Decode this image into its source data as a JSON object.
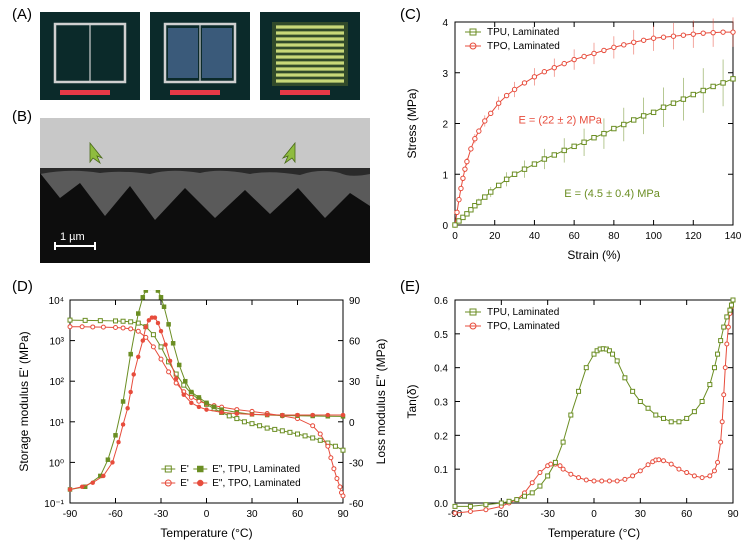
{
  "labels": {
    "A": "(A)",
    "B": "(B)",
    "C": "(C)",
    "D": "(D)",
    "E": "(E)"
  },
  "colors": {
    "tpu": "#6b8e23",
    "tpo": "#e74c3c",
    "tpu_dark": "#556b2f",
    "tpo_dark": "#c0392b",
    "axis": "#000000",
    "micrograph_bg": "#1a1a1a",
    "micrograph_light": "#c0c0c0",
    "scalebar": "#e63946",
    "photo_bg": "#0b2a2a",
    "photo_cell": "#b8c870",
    "photo_frame": "#d0d0d0"
  },
  "panelA": {
    "scalebar_label": ""
  },
  "panelB": {
    "scalebar": "1 µm"
  },
  "panelC": {
    "type": "line-errorbar",
    "xlabel": "Strain (%)",
    "ylabel": "Stress (MPa)",
    "xlim": [
      0,
      140
    ],
    "ylim": [
      0,
      4
    ],
    "xticks": [
      0,
      20,
      40,
      60,
      80,
      100,
      120,
      140
    ],
    "yticks": [
      0,
      1,
      2,
      3,
      4
    ],
    "legend": {
      "tpu": "TPU, Laminated",
      "tpo": "TPO, Laminated",
      "tpu_marker": "square-open",
      "tpo_marker": "circle-open"
    },
    "annotations": {
      "tpu": "E = (4.5 ± 0.4) MPa",
      "tpo": "E = (22 ± 2) MPa"
    },
    "series": {
      "tpu": {
        "x": [
          0,
          2,
          4,
          6,
          8,
          10,
          12,
          15,
          18,
          22,
          26,
          30,
          35,
          40,
          45,
          50,
          55,
          60,
          65,
          70,
          75,
          80,
          85,
          90,
          95,
          100,
          105,
          110,
          115,
          120,
          125,
          130,
          135,
          140
        ],
        "y": [
          0.0,
          0.08,
          0.15,
          0.22,
          0.3,
          0.38,
          0.45,
          0.55,
          0.65,
          0.78,
          0.9,
          1.0,
          1.1,
          1.2,
          1.3,
          1.38,
          1.47,
          1.55,
          1.63,
          1.72,
          1.8,
          1.9,
          1.98,
          2.07,
          2.15,
          2.22,
          2.32,
          2.4,
          2.48,
          2.57,
          2.65,
          2.73,
          2.8,
          2.88
        ],
        "err": [
          0.0,
          0.02,
          0.03,
          0.04,
          0.05,
          0.06,
          0.07,
          0.08,
          0.1,
          0.12,
          0.14,
          0.15,
          0.17,
          0.19,
          0.2,
          0.22,
          0.24,
          0.26,
          0.27,
          0.29,
          0.3,
          0.32,
          0.33,
          0.35,
          0.36,
          0.38,
          0.39,
          0.4,
          0.42,
          0.43,
          0.44,
          0.45,
          0.46,
          0.47
        ],
        "color": "#6b8e23"
      },
      "tpo": {
        "x": [
          0,
          1,
          2,
          3,
          4,
          5,
          6,
          8,
          10,
          12,
          15,
          18,
          22,
          26,
          30,
          35,
          40,
          45,
          50,
          55,
          60,
          65,
          70,
          75,
          80,
          85,
          90,
          95,
          100,
          105,
          110,
          115,
          120,
          125,
          130,
          135,
          140
        ],
        "y": [
          0.0,
          0.25,
          0.5,
          0.72,
          0.92,
          1.1,
          1.25,
          1.5,
          1.7,
          1.85,
          2.05,
          2.2,
          2.4,
          2.55,
          2.67,
          2.8,
          2.92,
          3.02,
          3.1,
          3.18,
          3.26,
          3.32,
          3.38,
          3.44,
          3.5,
          3.55,
          3.6,
          3.64,
          3.68,
          3.7,
          3.72,
          3.74,
          3.76,
          3.78,
          3.79,
          3.8,
          3.8
        ],
        "err": [
          0.0,
          0.02,
          0.03,
          0.04,
          0.05,
          0.06,
          0.07,
          0.08,
          0.09,
          0.1,
          0.11,
          0.12,
          0.13,
          0.14,
          0.15,
          0.16,
          0.17,
          0.18,
          0.18,
          0.19,
          0.2,
          0.21,
          0.21,
          0.22,
          0.22,
          0.23,
          0.24,
          0.24,
          0.25,
          0.25,
          0.26,
          0.26,
          0.27,
          0.27,
          0.28,
          0.28,
          0.29
        ],
        "color": "#e74c3c"
      }
    }
  },
  "panelD": {
    "type": "dual-axis",
    "xlabel": "Temperature (°C)",
    "ylabel_left": "Storage modulus E' (MPa)",
    "ylabel_right": "Loss modulus E\" (MPa)",
    "xlim": [
      -90,
      90
    ],
    "ylim_left": [
      0.1,
      10000
    ],
    "ylim_right": [
      -60,
      90
    ],
    "xticks": [
      -90,
      -60,
      -30,
      0,
      30,
      60,
      90
    ],
    "yticks_left": [
      0.1,
      1,
      10,
      100,
      1000,
      10000
    ],
    "ytick_labels_left": [
      "10⁻¹",
      "10⁰",
      "10¹",
      "10²",
      "10³",
      "10⁴"
    ],
    "yticks_right": [
      -60,
      -30,
      0,
      30,
      60,
      90
    ],
    "legend": {
      "tpu_E1_open": "E'",
      "tpu_E2_solid": "E\", TPU, Laminated",
      "tpo_E1_open": "E'",
      "tpo_E2_solid": "E\", TPO, Laminated"
    },
    "series": {
      "E1_tpu": {
        "x": [
          -90,
          -80,
          -70,
          -60,
          -55,
          -50,
          -45,
          -40,
          -35,
          -30,
          -25,
          -20,
          -15,
          -10,
          -5,
          0,
          5,
          10,
          15,
          20,
          25,
          30,
          35,
          40,
          45,
          50,
          55,
          60,
          65,
          70,
          75,
          80,
          85,
          90
        ],
        "y": [
          3200,
          3150,
          3100,
          3050,
          3000,
          2900,
          2700,
          2200,
          1400,
          700,
          300,
          150,
          80,
          50,
          35,
          27,
          21,
          17,
          14,
          12,
          10,
          9,
          8,
          7,
          6.5,
          6,
          5.5,
          5,
          4.5,
          4,
          3.5,
          3,
          2.5,
          2
        ],
        "color": "#6b8e23",
        "marker": "square-open"
      },
      "E1_tpo": {
        "x": [
          -90,
          -82,
          -75,
          -68,
          -60,
          -55,
          -50,
          -45,
          -40,
          -35,
          -30,
          -25,
          -20,
          -15,
          -10,
          -5,
          0,
          5,
          10,
          20,
          30,
          40,
          50,
          60,
          70,
          75,
          80,
          82,
          84,
          86,
          88,
          89,
          90
        ],
        "y": [
          2200,
          2190,
          2170,
          2150,
          2100,
          2050,
          1950,
          1700,
          1200,
          700,
          350,
          170,
          90,
          55,
          40,
          32,
          28,
          25,
          23,
          20,
          18,
          16,
          14,
          12,
          8,
          5,
          2.5,
          1.3,
          0.7,
          0.4,
          0.25,
          0.18,
          0.15
        ],
        "color": "#e74c3c",
        "marker": "circle-open"
      },
      "E2_tpu": {
        "x": [
          -90,
          -80,
          -70,
          -65,
          -60,
          -55,
          -50,
          -45,
          -42,
          -40,
          -38,
          -36,
          -34,
          -32,
          -30,
          -28,
          -25,
          -22,
          -18,
          -14,
          -10,
          -5,
          0,
          5,
          10,
          20,
          30,
          40,
          50,
          60,
          70,
          80,
          90
        ],
        "y": [
          -50,
          -48,
          -40,
          -28,
          -10,
          15,
          50,
          80,
          92,
          97,
          99,
          100,
          99,
          97,
          92,
          85,
          72,
          58,
          42,
          30,
          22,
          18,
          14,
          11,
          9,
          7,
          5.5,
          5,
          4.7,
          4.5,
          4.3,
          4.1,
          4
        ],
        "color": "#6b8e23",
        "marker": "square-solid"
      },
      "E2_tpo": {
        "x": [
          -90,
          -82,
          -75,
          -68,
          -62,
          -58,
          -55,
          -52,
          -50,
          -48,
          -45,
          -42,
          -40,
          -38,
          -36,
          -34,
          -32,
          -30,
          -27,
          -24,
          -20,
          -15,
          -10,
          -5,
          0,
          10,
          20,
          30,
          40,
          50,
          60,
          70,
          80,
          90
        ],
        "y": [
          -50,
          -48,
          -45,
          -40,
          -30,
          -15,
          -2,
          10,
          22,
          35,
          48,
          60,
          70,
          75,
          77,
          77,
          73,
          67,
          57,
          45,
          32,
          20,
          14,
          11,
          9,
          7,
          6,
          5.5,
          5.2,
          5,
          5,
          5,
          5,
          5
        ],
        "color": "#e74c3c",
        "marker": "circle-solid"
      }
    }
  },
  "panelE": {
    "type": "line",
    "xlabel": "Temperature (°C)",
    "ylabel": "Tan(δ)",
    "xlim": [
      -90,
      90
    ],
    "ylim": [
      0,
      0.6
    ],
    "xticks": [
      -90,
      -60,
      -30,
      0,
      30,
      60,
      90
    ],
    "yticks": [
      0.0,
      0.1,
      0.2,
      0.3,
      0.4,
      0.5,
      0.6
    ],
    "legend": {
      "tpu": "TPU, Laminated",
      "tpo": "TPO, Laminated"
    },
    "series": {
      "tpu": {
        "x": [
          -90,
          -80,
          -70,
          -60,
          -55,
          -50,
          -45,
          -40,
          -35,
          -30,
          -25,
          -20,
          -15,
          -10,
          -5,
          0,
          2,
          4,
          6,
          8,
          10,
          12,
          15,
          20,
          25,
          30,
          35,
          40,
          45,
          50,
          55,
          60,
          65,
          70,
          75,
          78,
          80,
          82,
          84,
          86,
          88,
          89,
          90
        ],
        "y": [
          -0.01,
          -0.01,
          -0.005,
          0.0,
          0.005,
          0.01,
          0.02,
          0.03,
          0.05,
          0.08,
          0.12,
          0.18,
          0.26,
          0.33,
          0.4,
          0.44,
          0.45,
          0.455,
          0.456,
          0.455,
          0.45,
          0.44,
          0.42,
          0.37,
          0.33,
          0.3,
          0.28,
          0.26,
          0.25,
          0.24,
          0.24,
          0.25,
          0.27,
          0.3,
          0.35,
          0.4,
          0.44,
          0.48,
          0.52,
          0.55,
          0.57,
          0.585,
          0.6
        ],
        "color": "#6b8e23",
        "marker": "square-open"
      },
      "tpo": {
        "x": [
          -90,
          -80,
          -70,
          -60,
          -55,
          -50,
          -45,
          -40,
          -35,
          -30,
          -28,
          -25,
          -22,
          -20,
          -15,
          -10,
          -5,
          0,
          5,
          10,
          15,
          20,
          25,
          30,
          35,
          38,
          40,
          42,
          45,
          50,
          55,
          60,
          65,
          70,
          75,
          78,
          80,
          82,
          83,
          84,
          85,
          86,
          87,
          88,
          89,
          90
        ],
        "y": [
          -0.03,
          -0.025,
          -0.02,
          -0.01,
          0.0,
          0.01,
          0.03,
          0.06,
          0.09,
          0.11,
          0.115,
          0.115,
          0.11,
          0.1,
          0.085,
          0.075,
          0.068,
          0.065,
          0.065,
          0.065,
          0.065,
          0.07,
          0.08,
          0.095,
          0.113,
          0.122,
          0.127,
          0.128,
          0.125,
          0.115,
          0.1,
          0.09,
          0.08,
          0.075,
          0.08,
          0.095,
          0.12,
          0.18,
          0.24,
          0.32,
          0.4,
          0.47,
          0.52,
          0.56,
          0.58,
          0.6
        ],
        "color": "#e74c3c",
        "marker": "circle-open"
      }
    }
  }
}
